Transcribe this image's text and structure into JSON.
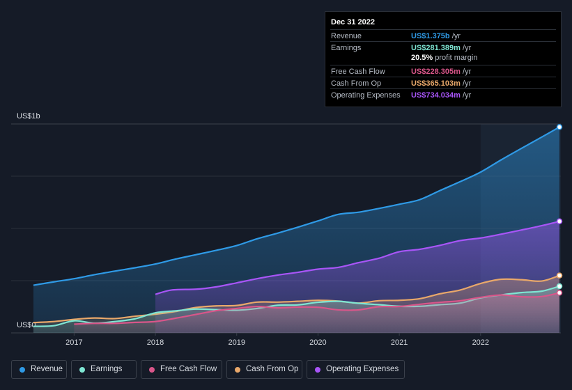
{
  "chart_data": {
    "type": "area",
    "title": "",
    "y_unit_label_top": "US$1b",
    "y_unit_label_bottom": "US$0",
    "ylim": [
      0,
      1.0
    ],
    "xlim": [
      2016.5,
      2022.97
    ],
    "x_ticks": [
      {
        "value": 2017,
        "label": "2017"
      },
      {
        "value": 2018,
        "label": "2018"
      },
      {
        "value": 2019,
        "label": "2019"
      },
      {
        "value": 2020,
        "label": "2020"
      },
      {
        "value": 2021,
        "label": "2021"
      },
      {
        "value": 2022,
        "label": "2022"
      }
    ],
    "highlight_start": 2022.0,
    "series": [
      {
        "name": "Revenue",
        "color": "#2f9ae6",
        "x": [
          2016.5,
          2016.75,
          2017.0,
          2017.25,
          2017.5,
          2017.75,
          2018.0,
          2018.25,
          2018.5,
          2018.75,
          2019.0,
          2019.25,
          2019.5,
          2019.75,
          2020.0,
          2020.25,
          2020.5,
          2020.75,
          2021.0,
          2021.25,
          2021.5,
          2021.75,
          2022.0,
          2022.25,
          2022.5,
          2022.75,
          2022.97
        ],
        "values": [
          0.205,
          0.222,
          0.238,
          0.258,
          0.276,
          0.293,
          0.312,
          0.337,
          0.359,
          0.381,
          0.405,
          0.439,
          0.467,
          0.497,
          0.529,
          0.562,
          0.573,
          0.592,
          0.613,
          0.636,
          0.682,
          0.727,
          0.775,
          0.836,
          0.894,
          0.951,
          1.002
        ]
      },
      {
        "name": "Operating Expenses",
        "color": "#a855f7",
        "x": [
          2018.0,
          2018.2,
          2018.5,
          2018.75,
          2019.0,
          2019.25,
          2019.5,
          2019.75,
          2020.0,
          2020.25,
          2020.5,
          2020.75,
          2021.0,
          2021.25,
          2021.5,
          2021.75,
          2022.0,
          2022.25,
          2022.5,
          2022.75,
          2022.97
        ],
        "values": [
          0.159,
          0.181,
          0.185,
          0.197,
          0.217,
          0.238,
          0.256,
          0.27,
          0.286,
          0.295,
          0.319,
          0.341,
          0.374,
          0.386,
          0.406,
          0.43,
          0.443,
          0.462,
          0.483,
          0.505,
          0.527
        ]
      },
      {
        "name": "Cash From Op",
        "color": "#e9a86a",
        "x": [
          2016.5,
          2016.75,
          2017.0,
          2017.25,
          2017.5,
          2017.75,
          2018.0,
          2018.25,
          2018.5,
          2018.75,
          2019.0,
          2019.25,
          2019.5,
          2019.75,
          2020.0,
          2020.25,
          2020.5,
          2020.75,
          2021.0,
          2021.25,
          2021.5,
          2021.75,
          2022.0,
          2022.25,
          2022.5,
          2022.75,
          2022.97
        ],
        "values": [
          0.017,
          0.022,
          0.033,
          0.04,
          0.037,
          0.049,
          0.059,
          0.073,
          0.093,
          0.101,
          0.103,
          0.12,
          0.12,
          0.124,
          0.129,
          0.125,
          0.115,
          0.127,
          0.129,
          0.137,
          0.162,
          0.181,
          0.214,
          0.235,
          0.233,
          0.226,
          0.254
        ]
      },
      {
        "name": "Earnings",
        "color": "#7fe6d3",
        "x": [
          2016.5,
          2016.75,
          2017.0,
          2017.25,
          2017.5,
          2017.75,
          2018.0,
          2018.25,
          2018.5,
          2018.75,
          2019.0,
          2019.25,
          2019.5,
          2019.75,
          2020.0,
          2020.25,
          2020.5,
          2020.75,
          2021.0,
          2021.25,
          2021.5,
          2021.75,
          2022.0,
          2022.25,
          2022.5,
          2022.75,
          2022.97
        ],
        "values": [
          -0.002,
          0.001,
          0.026,
          0.014,
          0.022,
          0.036,
          0.066,
          0.076,
          0.085,
          0.082,
          0.079,
          0.088,
          0.104,
          0.106,
          0.119,
          0.124,
          0.114,
          0.107,
          0.099,
          0.099,
          0.107,
          0.115,
          0.141,
          0.156,
          0.168,
          0.175,
          0.2
        ]
      },
      {
        "name": "Free Cash Flow",
        "color": "#d9568a",
        "x": [
          2017.0,
          2017.25,
          2017.5,
          2017.75,
          2018.0,
          2018.25,
          2018.5,
          2018.75,
          2019.0,
          2019.25,
          2019.5,
          2019.75,
          2020.0,
          2020.25,
          2020.5,
          2020.75,
          2021.0,
          2021.25,
          2021.5,
          2021.75,
          2022.0,
          2022.25,
          2022.5,
          2022.75,
          2022.97
        ],
        "values": [
          0.009,
          0.013,
          0.013,
          0.018,
          0.022,
          0.039,
          0.058,
          0.077,
          0.088,
          0.098,
          0.091,
          0.095,
          0.094,
          0.081,
          0.081,
          0.097,
          0.098,
          0.109,
          0.119,
          0.127,
          0.144,
          0.156,
          0.147,
          0.148,
          0.167
        ]
      }
    ]
  },
  "tooltip": {
    "date": "Dec 31 2022",
    "rows": [
      {
        "label": "Revenue",
        "value": "US$1.375b",
        "suffix": "/yr",
        "color": "#2f9ae6"
      },
      {
        "label": "Earnings",
        "value": "US$281.389m",
        "suffix": "/yr",
        "color": "#7fe6d3"
      },
      {
        "label": "Free Cash Flow",
        "value": "US$228.305m",
        "suffix": "/yr",
        "color": "#d9568a"
      },
      {
        "label": "Cash From Op",
        "value": "US$365.103m",
        "suffix": "/yr",
        "color": "#e9a86a"
      },
      {
        "label": "Operating Expenses",
        "value": "US$734.034m",
        "suffix": "/yr",
        "color": "#a855f7"
      }
    ],
    "margin_value": "20.5%",
    "margin_label": "profit margin"
  },
  "legend": [
    {
      "label": "Revenue",
      "color": "#2f9ae6"
    },
    {
      "label": "Earnings",
      "color": "#7fe6d3"
    },
    {
      "label": "Free Cash Flow",
      "color": "#d9568a"
    },
    {
      "label": "Cash From Op",
      "color": "#e9a86a"
    },
    {
      "label": "Operating Expenses",
      "color": "#a855f7"
    }
  ]
}
